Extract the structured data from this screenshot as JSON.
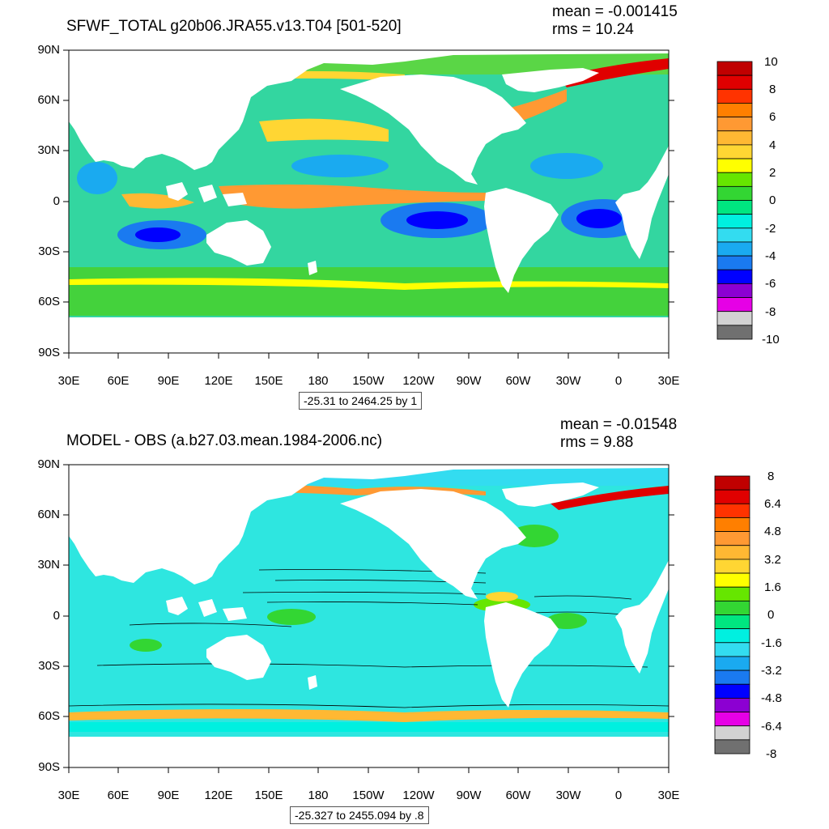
{
  "panels": [
    {
      "title": "SFWF_TOTAL g20b06.JRA55.v13.T04 [501-520]",
      "mean": "mean = -0.001415",
      "rms": "rms = 10.24",
      "info": "-25.31 to 2464.25 by 1",
      "lat_ticks": [
        "90N",
        "60N",
        "30N",
        "0",
        "30S",
        "60S",
        "90S"
      ],
      "lon_ticks": [
        "30E",
        "60E",
        "90E",
        "120E",
        "150E",
        "180",
        "150W",
        "120W",
        "90W",
        "60W",
        "30W",
        "0",
        "30E"
      ],
      "colorbar_labels": [
        "10",
        "8",
        "6",
        "4",
        "2",
        "0",
        "-2",
        "-4",
        "-6",
        "-8",
        "-10"
      ],
      "colorbar_colors": [
        "#c00000",
        "#e00000",
        "#ff3300",
        "#ff7f00",
        "#ff9933",
        "#ffb833",
        "#ffd633",
        "#ffff00",
        "#66e600",
        "#33d633",
        "#00e680",
        "#00f0e0",
        "#33dcf0",
        "#1aaaf0",
        "#1a7af0",
        "#0000ff",
        "#8c00d2",
        "#e600e6",
        "#d2d2d2",
        "#707070"
      ]
    },
    {
      "title": "MODEL - OBS (a.b27.03.mean.1984-2006.nc)",
      "mean": "mean = -0.01548",
      "rms": "rms = 9.88",
      "info": "-25.327 to 2455.094 by .8",
      "lat_ticks": [
        "90N",
        "60N",
        "30N",
        "0",
        "30S",
        "60S",
        "90S"
      ],
      "lon_ticks": [
        "30E",
        "60E",
        "90E",
        "120E",
        "150E",
        "180",
        "150W",
        "120W",
        "90W",
        "60W",
        "30W",
        "0",
        "30E"
      ],
      "colorbar_labels": [
        "8",
        "6.4",
        "4.8",
        "3.2",
        "1.6",
        "0",
        "-1.6",
        "-3.2",
        "-4.8",
        "-6.4",
        "-8"
      ],
      "colorbar_colors": [
        "#c00000",
        "#e00000",
        "#ff3300",
        "#ff7f00",
        "#ff9933",
        "#ffb833",
        "#ffd633",
        "#ffff00",
        "#66e600",
        "#33d633",
        "#00e680",
        "#00f0e0",
        "#33dcf0",
        "#1aaaf0",
        "#1a7af0",
        "#0000ff",
        "#8c00d2",
        "#e600e6",
        "#d2d2d2",
        "#707070"
      ]
    }
  ],
  "colors": {
    "ocean_top_base": "#33d6a0",
    "ocean_bottom_base": "#2ee6e0",
    "land": "#ffffff"
  }
}
